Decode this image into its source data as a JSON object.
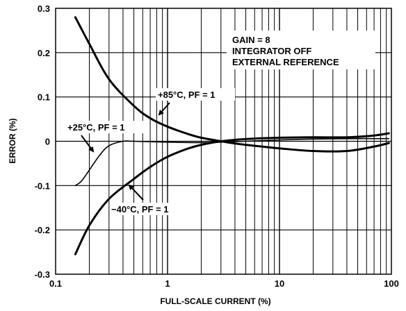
{
  "chart_data": {
    "type": "line",
    "title": "",
    "xlabel": "FULL-SCALE CURRENT (%)",
    "ylabel": "ERROR (%)",
    "xscale": "log",
    "xlim": [
      0.1,
      100
    ],
    "ylim": [
      -0.3,
      0.3
    ],
    "x_ticks": [
      "0.1",
      "1",
      "10",
      "100"
    ],
    "y_ticks": [
      "0.3",
      "0.2",
      "0.1",
      "0",
      "-0.1",
      "-0.2",
      "-0.3"
    ],
    "grid": true,
    "legend": "none",
    "series": [
      {
        "name": "+85°C, PF = 1",
        "color": "#000000",
        "x": [
          0.15,
          0.2,
          0.3,
          0.5,
          0.7,
          1.0,
          1.5,
          2.0,
          3.0,
          4.0,
          5.0,
          7.0,
          10.0,
          20.0,
          40.0,
          70.0,
          95.0
        ],
        "y": [
          0.28,
          0.22,
          0.14,
          0.08,
          0.052,
          0.033,
          0.017,
          0.008,
          0.0,
          -0.005,
          -0.008,
          -0.012,
          -0.016,
          -0.022,
          -0.022,
          -0.012,
          -0.004
        ]
      },
      {
        "name": "+25°C, PF = 1",
        "color": "#000000",
        "x": [
          0.15,
          0.17,
          0.2,
          0.25,
          0.3,
          0.4,
          0.5,
          1.0,
          2.0,
          3.0,
          5.0,
          10.0,
          20.0,
          50.0,
          95.0
        ],
        "y": [
          -0.1,
          -0.09,
          -0.065,
          -0.03,
          -0.01,
          0.0,
          0.0,
          -0.002,
          -0.003,
          -0.002,
          0.0,
          0.003,
          0.005,
          0.006,
          0.006
        ]
      },
      {
        "name": "−40°C, PF = 1",
        "color": "#000000",
        "x": [
          0.15,
          0.2,
          0.3,
          0.5,
          0.7,
          1.0,
          1.5,
          2.0,
          3.0,
          5.0,
          10.0,
          20.0,
          40.0,
          70.0,
          95.0
        ],
        "y": [
          -0.255,
          -0.19,
          -0.13,
          -0.085,
          -0.058,
          -0.035,
          -0.017,
          -0.008,
          0.0,
          0.005,
          0.008,
          0.009,
          0.009,
          0.013,
          0.018
        ]
      }
    ],
    "annotations": [
      {
        "text": "+85°C, PF = 1"
      },
      {
        "text": "+25°C, PF = 1"
      },
      {
        "text": "−40°C, PF = 1"
      }
    ],
    "info_box": [
      "GAIN = 8",
      "INTEGRATOR OFF",
      "EXTERNAL REFERENCE"
    ]
  }
}
